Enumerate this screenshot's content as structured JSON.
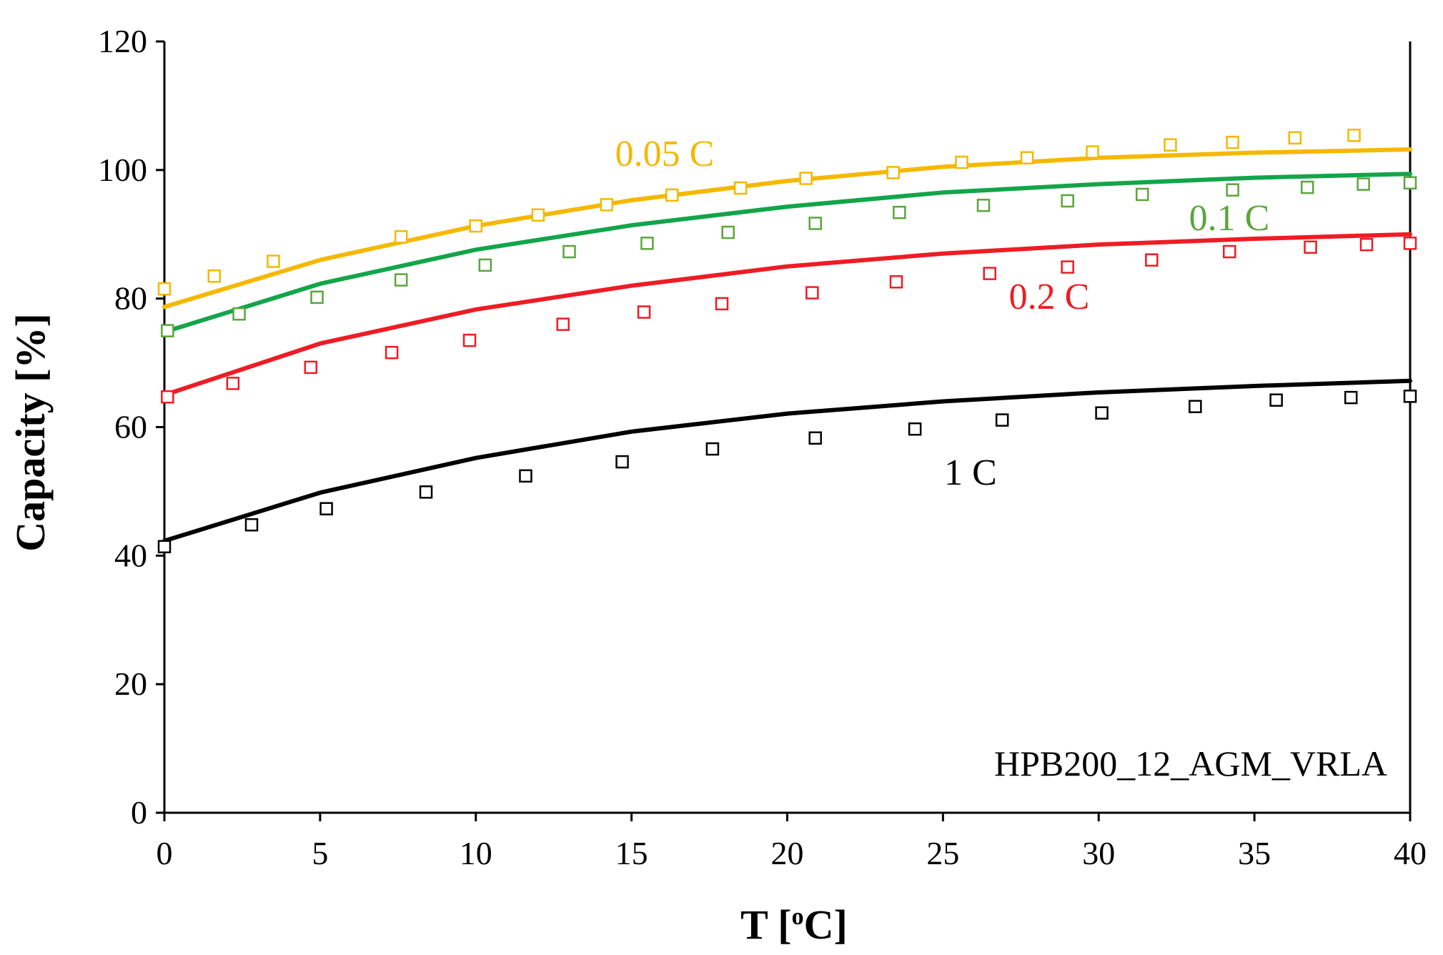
{
  "chart_data": {
    "type": "scatter",
    "title": "",
    "xlabel": "T [",
    "xlabel_sup": "o",
    "xlabel_end": "C]",
    "ylabel": "Capacity [%]",
    "xlim": [
      0,
      40
    ],
    "ylim": [
      0,
      120
    ],
    "xticks": [
      0,
      5,
      10,
      15,
      20,
      25,
      30,
      35,
      40
    ],
    "yticks": [
      0,
      20,
      40,
      60,
      80,
      100,
      120
    ],
    "grid": false,
    "annotation": "HPB200_12_AGM_VRLA",
    "series": [
      {
        "name": "0.05 C",
        "color": "#F5B800",
        "markers": [
          [
            0,
            81.5
          ],
          [
            1.6,
            83.5
          ],
          [
            3.5,
            85.8
          ],
          [
            7.6,
            89.6
          ],
          [
            10,
            91.3
          ],
          [
            12,
            93
          ],
          [
            14.2,
            94.6
          ],
          [
            16.3,
            96.1
          ],
          [
            18.5,
            97.2
          ],
          [
            20.6,
            98.7
          ],
          [
            23.4,
            99.6
          ],
          [
            25.6,
            101.2
          ],
          [
            27.7,
            101.9
          ],
          [
            29.8,
            102.8
          ],
          [
            32.3,
            103.9
          ],
          [
            34.3,
            104.3
          ],
          [
            36.3,
            105
          ],
          [
            38.2,
            105.4
          ]
        ],
        "fit": [
          [
            0,
            78.7
          ],
          [
            5,
            86
          ],
          [
            10,
            91.3
          ],
          [
            15,
            95.3
          ],
          [
            20,
            98.3
          ],
          [
            25,
            100.5
          ],
          [
            30,
            101.9
          ],
          [
            35,
            102.7
          ],
          [
            40,
            103.2
          ]
        ]
      },
      {
        "name": "0.1 C",
        "color": "#5BA53C",
        "line_color": "#12A54A",
        "markers": [
          [
            0.1,
            75
          ],
          [
            2.4,
            77.6
          ],
          [
            4.9,
            80.2
          ],
          [
            7.6,
            82.9
          ],
          [
            10.3,
            85.2
          ],
          [
            13,
            87.3
          ],
          [
            15.5,
            88.6
          ],
          [
            18.1,
            90.3
          ],
          [
            20.9,
            91.7
          ],
          [
            23.6,
            93.4
          ],
          [
            26.3,
            94.5
          ],
          [
            29,
            95.2
          ],
          [
            31.4,
            96.2
          ],
          [
            34.3,
            96.9
          ],
          [
            36.7,
            97.3
          ],
          [
            38.5,
            97.8
          ],
          [
            40,
            98
          ]
        ],
        "fit": [
          [
            0,
            74.8
          ],
          [
            5,
            82.3
          ],
          [
            10,
            87.6
          ],
          [
            15,
            91.4
          ],
          [
            20,
            94.3
          ],
          [
            25,
            96.5
          ],
          [
            30,
            97.8
          ],
          [
            35,
            98.8
          ],
          [
            40,
            99.4
          ]
        ]
      },
      {
        "name": "0.2 C",
        "color": "#EE1C24",
        "markers": [
          [
            0.1,
            64.7
          ],
          [
            2.2,
            66.8
          ],
          [
            4.7,
            69.3
          ],
          [
            7.3,
            71.6
          ],
          [
            9.8,
            73.5
          ],
          [
            12.8,
            76
          ],
          [
            15.4,
            77.9
          ],
          [
            17.9,
            79.2
          ],
          [
            20.8,
            80.9
          ],
          [
            23.5,
            82.6
          ],
          [
            26.5,
            83.9
          ],
          [
            29,
            84.9
          ],
          [
            31.7,
            86
          ],
          [
            34.2,
            87.3
          ],
          [
            36.8,
            88
          ],
          [
            38.6,
            88.4
          ],
          [
            40,
            88.6
          ]
        ],
        "fit": [
          [
            0,
            65
          ],
          [
            5,
            73
          ],
          [
            10,
            78.3
          ],
          [
            15,
            82
          ],
          [
            20,
            85
          ],
          [
            25,
            87
          ],
          [
            30,
            88.4
          ],
          [
            35,
            89.3
          ],
          [
            40,
            90
          ]
        ]
      },
      {
        "name": "1 C",
        "color": "#000000",
        "markers": [
          [
            0,
            41.4
          ],
          [
            2.8,
            44.8
          ],
          [
            5.2,
            47.3
          ],
          [
            8.4,
            49.9
          ],
          [
            11.6,
            52.4
          ],
          [
            14.7,
            54.6
          ],
          [
            17.6,
            56.6
          ],
          [
            20.9,
            58.3
          ],
          [
            24.1,
            59.7
          ],
          [
            26.9,
            61.1
          ],
          [
            30.1,
            62.2
          ],
          [
            33.1,
            63.2
          ],
          [
            35.7,
            64.2
          ],
          [
            38.1,
            64.6
          ],
          [
            40,
            64.8
          ]
        ],
        "fit": [
          [
            0,
            42.3
          ],
          [
            5,
            49.8
          ],
          [
            10,
            55.2
          ],
          [
            15,
            59.3
          ],
          [
            20,
            62.1
          ],
          [
            25,
            64
          ],
          [
            30,
            65.4
          ],
          [
            35,
            66.4
          ],
          [
            40,
            67.2
          ]
        ]
      }
    ]
  }
}
